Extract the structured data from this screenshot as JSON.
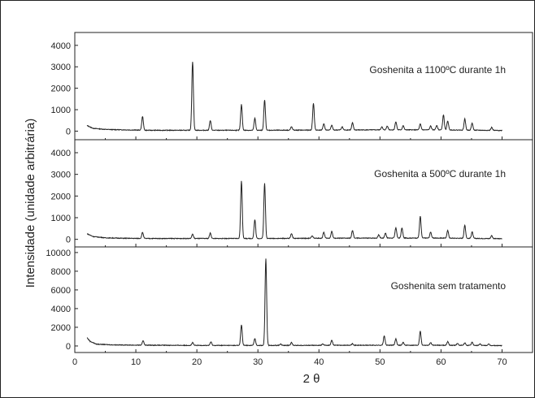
{
  "chart_data": {
    "type": "line",
    "xlabel": "2 θ",
    "ylabel": "Intensidade (unidade arbitrária)",
    "xlim": [
      0,
      75
    ],
    "x_ticks": [
      0,
      10,
      20,
      30,
      40,
      50,
      60,
      70
    ],
    "panels": [
      {
        "name": "Goshenita a 1100ºC durante 1h",
        "ylim": [
          -400,
          4600
        ],
        "y_ticks": [
          0,
          1000,
          2000,
          3000,
          4000
        ],
        "baseline": [
          [
            2,
            260
          ],
          [
            3,
            130
          ],
          [
            5,
            80
          ],
          [
            8,
            60
          ],
          [
            12,
            40
          ],
          [
            20,
            40
          ],
          [
            30,
            40
          ],
          [
            40,
            50
          ],
          [
            50,
            60
          ],
          [
            60,
            60
          ],
          [
            70,
            30
          ]
        ],
        "peaks": [
          [
            11.1,
            640
          ],
          [
            19.3,
            3200
          ],
          [
            22.2,
            450
          ],
          [
            27.3,
            1200
          ],
          [
            29.5,
            560
          ],
          [
            31.1,
            1420
          ],
          [
            35.5,
            160
          ],
          [
            39.1,
            1250
          ],
          [
            40.8,
            300
          ],
          [
            42.1,
            220
          ],
          [
            43.8,
            150
          ],
          [
            45.5,
            330
          ],
          [
            50.3,
            140
          ],
          [
            51.2,
            180
          ],
          [
            52.6,
            380
          ],
          [
            53.8,
            200
          ],
          [
            56.6,
            270
          ],
          [
            58.3,
            180
          ],
          [
            59.3,
            210
          ],
          [
            60.4,
            700
          ],
          [
            61.1,
            420
          ],
          [
            63.9,
            520
          ],
          [
            65.1,
            330
          ],
          [
            68.3,
            140
          ]
        ]
      },
      {
        "name": "Goshenita a 500ºC durante 1h",
        "ylim": [
          -350,
          4600
        ],
        "y_ticks": [
          0,
          1000,
          2000,
          3000,
          4000
        ],
        "baseline": [
          [
            2,
            260
          ],
          [
            3,
            130
          ],
          [
            5,
            70
          ],
          [
            8,
            50
          ],
          [
            12,
            40
          ],
          [
            20,
            40
          ],
          [
            30,
            40
          ],
          [
            40,
            50
          ],
          [
            50,
            60
          ],
          [
            60,
            60
          ],
          [
            70,
            30
          ]
        ],
        "peaks": [
          [
            11.1,
            280
          ],
          [
            19.3,
            200
          ],
          [
            22.2,
            250
          ],
          [
            27.3,
            2650
          ],
          [
            29.5,
            870
          ],
          [
            31.1,
            2550
          ],
          [
            35.5,
            220
          ],
          [
            38.9,
            120
          ],
          [
            40.8,
            280
          ],
          [
            42.1,
            320
          ],
          [
            45.5,
            350
          ],
          [
            49.8,
            150
          ],
          [
            50.9,
            230
          ],
          [
            52.6,
            480
          ],
          [
            53.6,
            470
          ],
          [
            56.6,
            1000
          ],
          [
            58.3,
            280
          ],
          [
            61.1,
            350
          ],
          [
            63.9,
            600
          ],
          [
            65.1,
            300
          ],
          [
            68.3,
            140
          ]
        ]
      },
      {
        "name": "Goshenita sem tratamento",
        "ylim": [
          -700,
          10600
        ],
        "y_ticks": [
          0,
          2000,
          4000,
          6000,
          8000,
          10000
        ],
        "baseline": [
          [
            2,
            900
          ],
          [
            2.5,
            500
          ],
          [
            3.5,
            200
          ],
          [
            6,
            120
          ],
          [
            10,
            90
          ],
          [
            20,
            60
          ],
          [
            30,
            60
          ],
          [
            40,
            70
          ],
          [
            50,
            80
          ],
          [
            60,
            80
          ],
          [
            70,
            40
          ]
        ],
        "peaks": [
          [
            11.2,
            480
          ],
          [
            19.3,
            300
          ],
          [
            22.3,
            380
          ],
          [
            27.3,
            2200
          ],
          [
            29.5,
            750
          ],
          [
            31.3,
            9300
          ],
          [
            33.7,
            150
          ],
          [
            35.5,
            300
          ],
          [
            40.6,
            150
          ],
          [
            42.1,
            550
          ],
          [
            45.5,
            180
          ],
          [
            50.7,
            1000
          ],
          [
            52.6,
            700
          ],
          [
            53.8,
            300
          ],
          [
            56.6,
            1500
          ],
          [
            58.3,
            280
          ],
          [
            61.1,
            400
          ],
          [
            62.7,
            200
          ],
          [
            63.9,
            250
          ],
          [
            65.1,
            350
          ],
          [
            66.4,
            170
          ],
          [
            67.8,
            140
          ]
        ]
      }
    ]
  }
}
